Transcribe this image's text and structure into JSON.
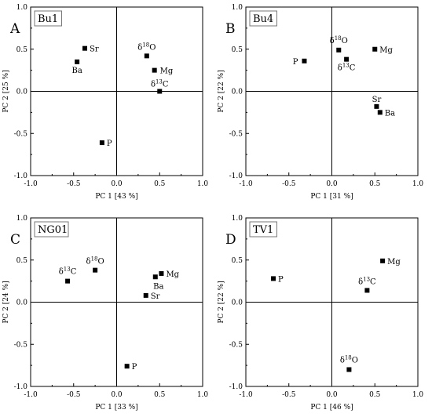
{
  "chart_data": [
    {
      "type": "scatter",
      "panel_letter": "A",
      "site": "Bu1",
      "xlabel": "PC 1 [43 %]",
      "ylabel": "PC 2 [25 %]",
      "xlim": [
        -1.0,
        1.0
      ],
      "ylim": [
        -1.0,
        1.0
      ],
      "xticks": [
        "-1.0",
        "-0.5",
        "0.0",
        "0.5",
        "1.0"
      ],
      "yticks": [
        "1.0",
        "0.5",
        "0.0",
        "-0.5",
        "-1.0"
      ],
      "points": [
        {
          "label": "Sr",
          "x": -0.37,
          "y": 0.51
        },
        {
          "label": "Ba",
          "x": -0.46,
          "y": 0.35
        },
        {
          "label": "δ18O",
          "x": 0.35,
          "y": 0.42
        },
        {
          "label": "Mg",
          "x": 0.44,
          "y": 0.25
        },
        {
          "label": "δ13C",
          "x": 0.5,
          "y": 0.0
        },
        {
          "label": "P",
          "x": -0.17,
          "y": -0.61
        }
      ]
    },
    {
      "type": "scatter",
      "panel_letter": "B",
      "site": "Bu4",
      "xlabel": "PC 1 [31 %]",
      "ylabel": "PC 2 [22 %]",
      "xlim": [
        -1.0,
        1.0
      ],
      "ylim": [
        -1.0,
        1.0
      ],
      "xticks": [
        "-1.0",
        "-0.5",
        "0.0",
        "0.5",
        "1.0"
      ],
      "yticks": [
        "1.0",
        "0.5",
        "0.0",
        "-0.5",
        "-1.0"
      ],
      "points": [
        {
          "label": "P",
          "x": -0.32,
          "y": 0.36
        },
        {
          "label": "δ18O",
          "x": 0.08,
          "y": 0.49
        },
        {
          "label": "δ13C",
          "x": 0.17,
          "y": 0.38
        },
        {
          "label": "Mg",
          "x": 0.5,
          "y": 0.5
        },
        {
          "label": "Sr",
          "x": 0.52,
          "y": -0.18
        },
        {
          "label": "Ba",
          "x": 0.56,
          "y": -0.25
        }
      ]
    },
    {
      "type": "scatter",
      "panel_letter": "C",
      "site": "NG01",
      "xlabel": "PC 1 [33 %]",
      "ylabel": "PC 2 [24 %]",
      "xlim": [
        -1.0,
        1.0
      ],
      "ylim": [
        -1.0,
        1.0
      ],
      "xticks": [
        "-1.0",
        "-0.5",
        "0.0",
        "0.5",
        "1.0"
      ],
      "yticks": [
        "1.0",
        "0.5",
        "0.0",
        "-0.5",
        "-1.0"
      ],
      "points": [
        {
          "label": "δ13C",
          "x": -0.57,
          "y": 0.25
        },
        {
          "label": "δ18O",
          "x": -0.25,
          "y": 0.38
        },
        {
          "label": "Mg",
          "x": 0.52,
          "y": 0.34
        },
        {
          "label": "Ba",
          "x": 0.45,
          "y": 0.3
        },
        {
          "label": "Sr",
          "x": 0.34,
          "y": 0.08
        },
        {
          "label": "P",
          "x": 0.12,
          "y": -0.76
        }
      ]
    },
    {
      "type": "scatter",
      "panel_letter": "D",
      "site": "TV1",
      "xlabel": "PC 1 [46 %]",
      "ylabel": "PC 2 [22 %]",
      "xlim": [
        -1.0,
        1.0
      ],
      "ylim": [
        -1.0,
        1.0
      ],
      "xticks": [
        "-1.0",
        "-0.5",
        "0.0",
        "0.5",
        "1.0"
      ],
      "yticks": [
        "1.0",
        "0.5",
        "0.0",
        "-0.5",
        "-1.0"
      ],
      "points": [
        {
          "label": "P",
          "x": -0.68,
          "y": 0.28
        },
        {
          "label": "Mg",
          "x": 0.59,
          "y": 0.49
        },
        {
          "label": "δ13C",
          "x": 0.41,
          "y": 0.14
        },
        {
          "label": "δ18O",
          "x": 0.2,
          "y": -0.8
        }
      ]
    }
  ]
}
